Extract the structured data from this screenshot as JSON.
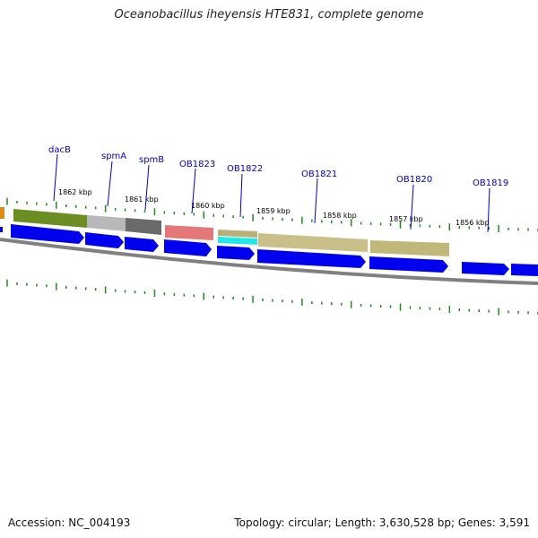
{
  "title": "Oceanobacillus iheyensis HTE831, complete genome",
  "footer": {
    "accession": "Accession: NC_004193",
    "stats": "Topology: circular; Length: 3,630,528 bp; Genes: 3,591"
  },
  "colors": {
    "cds_arrow": "#0000ee",
    "backbone": "#808080",
    "tick": "#228822",
    "label": "#0000c0"
  },
  "gene_labels": [
    "dacB",
    "spmA",
    "spmB",
    "OB1823",
    "OB1822",
    "OB1821",
    "OB1820",
    "OB1819"
  ],
  "kbp_labels": [
    "1862 kbp",
    "1861 kbp",
    "1860 kbp",
    "1859 kbp",
    "1858 kbp",
    "1857 kbp",
    "1856 kbp"
  ]
}
